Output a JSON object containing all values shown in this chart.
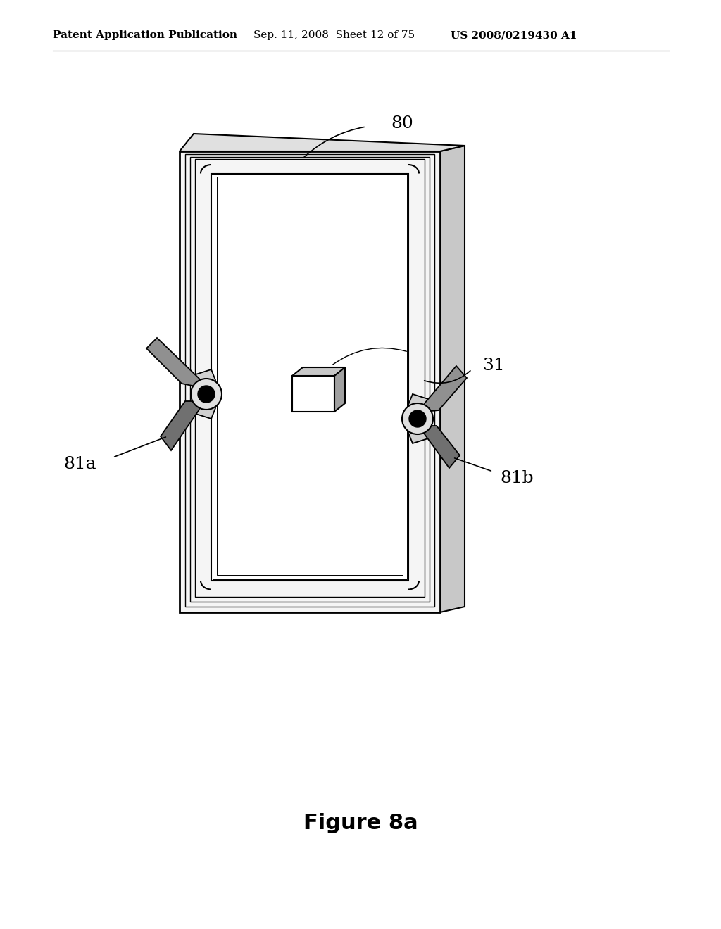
{
  "bg_color": "#ffffff",
  "header_left": "Patent Application Publication",
  "header_mid": "Sep. 11, 2008  Sheet 12 of 75",
  "header_right": "US 2008/0219430 A1",
  "header_fontsize": 11,
  "figure_caption": "Figure 8a",
  "caption_fontsize": 22,
  "label_80": "80",
  "label_31": "31",
  "label_81a": "81a",
  "label_81b": "81b",
  "line_color": "#000000"
}
